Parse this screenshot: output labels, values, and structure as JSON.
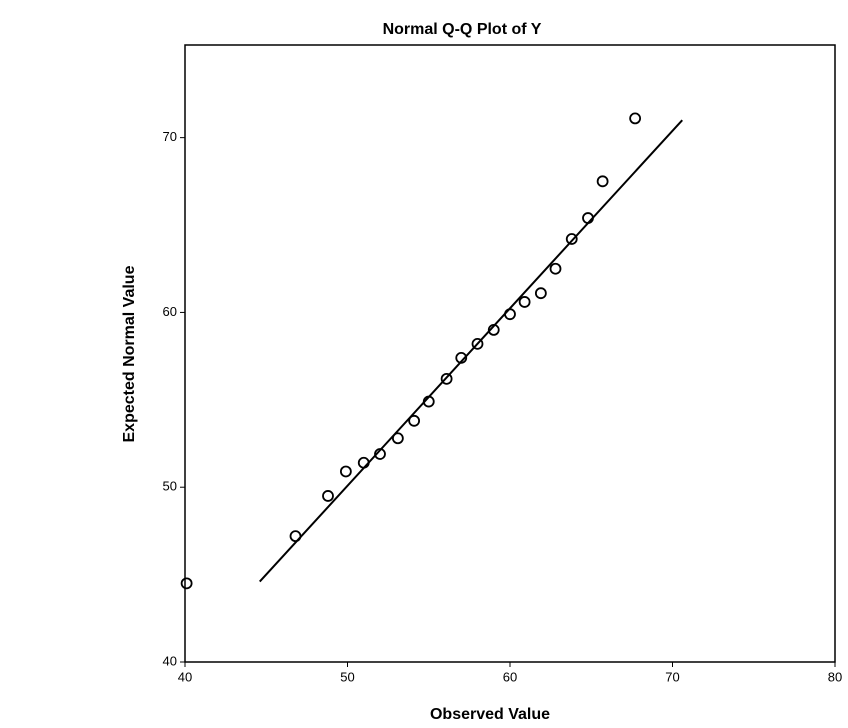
{
  "chart_data": {
    "type": "scatter",
    "title": "Normal Q-Q Plot of Y",
    "x_label": "Observed Value",
    "y_label": "Expected Normal Value",
    "x": [
      40.1,
      46.8,
      48.8,
      49.9,
      51.0,
      52.0,
      53.1,
      54.1,
      55.0,
      56.1,
      57.0,
      58.0,
      59.0,
      60.0,
      60.9,
      61.9,
      62.8,
      63.8,
      64.8,
      65.7,
      67.7
    ],
    "values": [
      44.5,
      47.2,
      49.5,
      50.9,
      51.4,
      51.9,
      52.8,
      53.8,
      54.9,
      56.2,
      57.4,
      58.2,
      59.0,
      59.9,
      60.6,
      61.1,
      62.5,
      64.2,
      65.4,
      67.5,
      71.1
    ],
    "reference_line": {
      "x": [
        44.6,
        70.6
      ],
      "y": [
        44.6,
        71.0
      ]
    },
    "xlim": [
      40,
      80
    ],
    "ylim": [
      40,
      75.3
    ],
    "xticks": [
      40,
      50,
      60,
      70,
      80
    ],
    "yticks": [
      40,
      50,
      60,
      70
    ],
    "color": "#000000",
    "grid": false
  }
}
